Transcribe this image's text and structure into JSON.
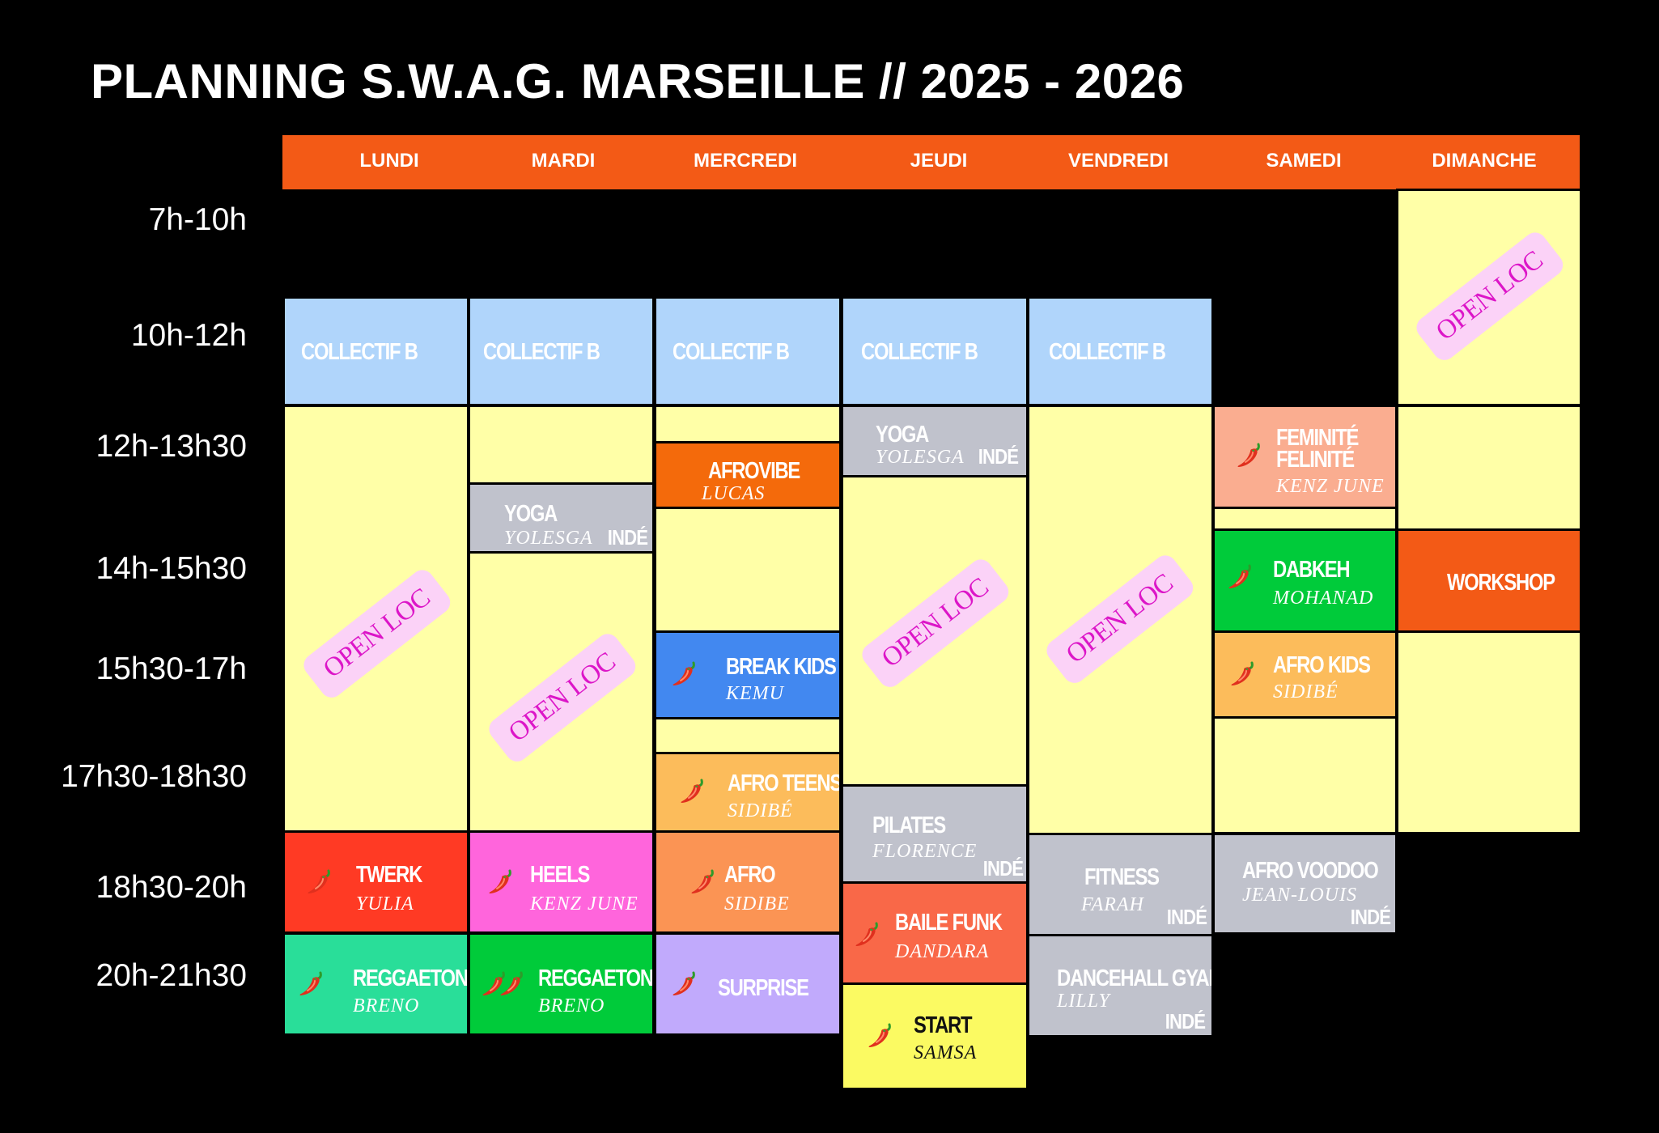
{
  "title": "PLANNING S.W.A.G. MARSEILLE // 2025 - 2026",
  "days": [
    "LUNDI",
    "MARDI",
    "MERCREDI",
    "JEUDI",
    "VENDREDI",
    "SAMEDI",
    "DIMANCHE"
  ],
  "times": [
    "7h-10h",
    "10h-12h",
    "12h-13h30",
    "14h-15h30",
    "15h30-17h",
    "17h30-18h30",
    "18h30-20h",
    "20h-21h30"
  ],
  "colors": {
    "header": "#f35a16",
    "collectif": "#b0d5fb",
    "open": "#ffffa7",
    "inde_gray": "#c0c2cc",
    "openloc_bg": "#fbd2f7",
    "openloc_text": "#dc16c8",
    "pepper_icon": "chili-pepper-icon"
  },
  "collectif_label": "COLLECTIF B",
  "open_loc_label": "OPEN LOC",
  "inde_label": "INDÉ",
  "classes": {
    "yoga_mardi": {
      "name": "YOGA",
      "teacher": "YOLESGA"
    },
    "yoga_jeudi": {
      "name": "YOGA",
      "teacher": "YOLESGA"
    },
    "afrovibe": {
      "name": "AFROVIBE",
      "teacher": "LUCAS"
    },
    "feminite": {
      "name": "FEMINITÉ",
      "name2": "FELINITÉ",
      "teacher": "KENZ JUNE"
    },
    "dabkeh": {
      "name": "DABKEH",
      "teacher": "MOHANAD"
    },
    "workshop": {
      "name": "WORKSHOP"
    },
    "breakkids": {
      "name": "BREAK KIDS",
      "teacher": "KEMU"
    },
    "afrokids": {
      "name": "AFRO KIDS",
      "teacher": "SIDIBÉ"
    },
    "afroteens": {
      "name": "AFRO TEENS",
      "teacher": "SIDIBÉ"
    },
    "pilates": {
      "name": "PILATES",
      "teacher": "FLORENCE"
    },
    "twerk": {
      "name": "TWERK",
      "teacher": "YULIA"
    },
    "heels": {
      "name": "HEELS",
      "teacher": "KENZ JUNE"
    },
    "afro": {
      "name": "AFRO",
      "teacher": "SIDIBE"
    },
    "bailefunk": {
      "name": "BAILE FUNK",
      "teacher": "DANDARA"
    },
    "fitness": {
      "name": "FITNESS",
      "teacher": "FARAH"
    },
    "afrovoodoo": {
      "name": "AFRO VOODOO",
      "teacher": "JEAN-LOUIS"
    },
    "reggaeton_lundi": {
      "name": "REGGAETON",
      "teacher": "BRENO"
    },
    "reggaeton_mardi": {
      "name": "REGGAETON",
      "teacher": "BRENO"
    },
    "surprise": {
      "name": "SURPRISE"
    },
    "start": {
      "name": "START",
      "teacher": "SAMSA"
    },
    "dancehall": {
      "name": "DANCEHALL GYAL",
      "teacher": "LILLY"
    }
  }
}
